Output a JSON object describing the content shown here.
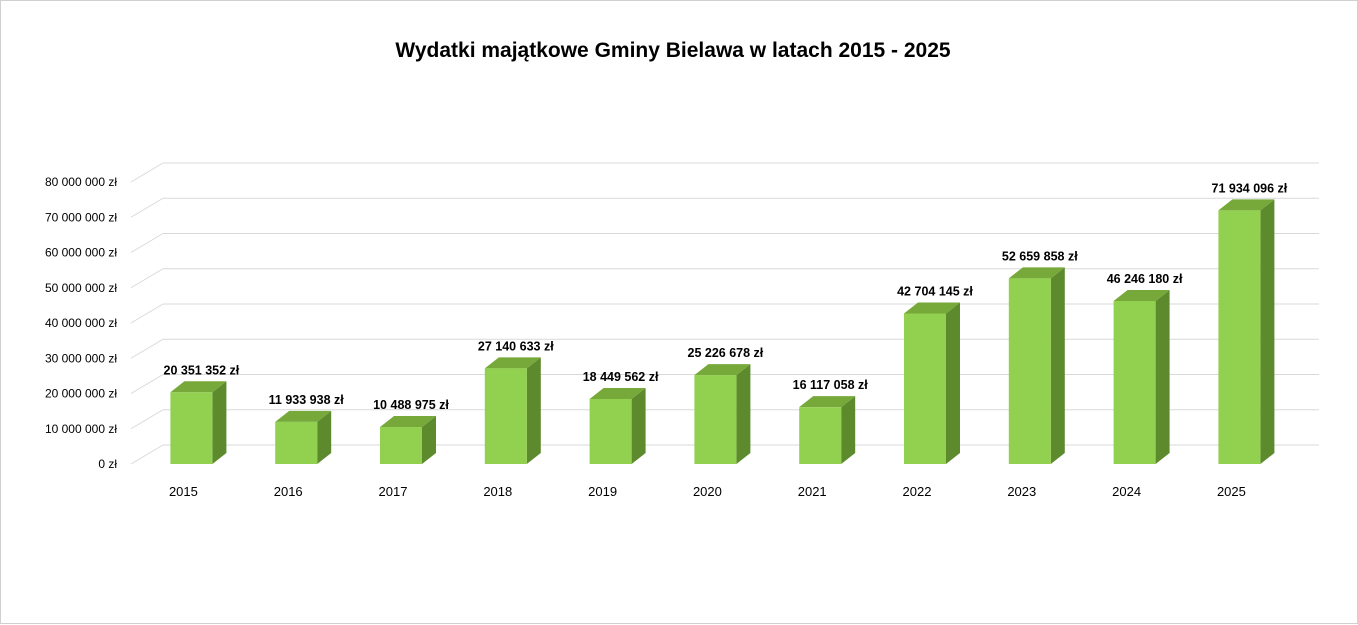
{
  "chart_data": {
    "type": "bar",
    "title": "Wydatki majątkowe Gminy Bielawa w latach 2015 - 2025",
    "xlabel": "",
    "ylabel": "",
    "ylim": [
      0,
      80000000
    ],
    "y_ticks": [
      0,
      10000000,
      20000000,
      30000000,
      40000000,
      50000000,
      60000000,
      70000000,
      80000000
    ],
    "y_tick_labels": [
      "0 zł",
      "10 000 000 zł",
      "20 000 000 zł",
      "30 000 000 zł",
      "40 000 000 zł",
      "50 000 000 zł",
      "60 000 000 zł",
      "70 000 000 zł",
      "80 000 000 zł"
    ],
    "categories": [
      "2015",
      "2016",
      "2017",
      "2018",
      "2019",
      "2020",
      "2021",
      "2022",
      "2023",
      "2024",
      "2025"
    ],
    "values": [
      20351352,
      11933938,
      10488975,
      27140633,
      18449562,
      25226678,
      16117058,
      42704145,
      52659858,
      46246180,
      71934096
    ],
    "data_labels": [
      "20 351 352 zł",
      "11 933 938 zł",
      "10 488 975 zł",
      "27 140 633 zł",
      "18 449 562 zł",
      "25 226 678 zł",
      "16 117 058 zł",
      "42 704 145 zł",
      "52 659 858 zł",
      "46 246 180 zł",
      "71 934 096 zł"
    ],
    "grid": true,
    "legend": "none",
    "style": "3d-column",
    "colors": {
      "bar_front": "#92d050",
      "bar_top": "#76a83a",
      "bar_side": "#5e8a2e",
      "grid": "#d9d9d9"
    }
  }
}
